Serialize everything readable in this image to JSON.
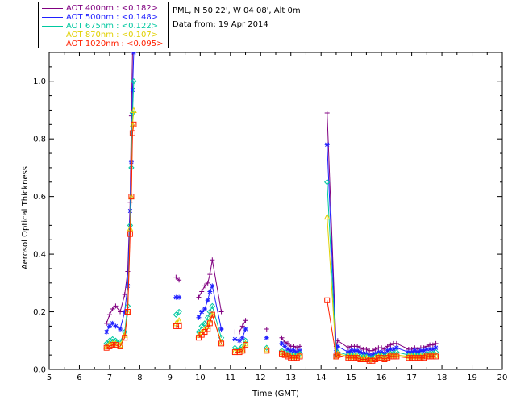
{
  "chart_data": {
    "type": "scatter",
    "title": "PML, N 50 22', W 04 08', Alt 0m",
    "subtitle": "Data from: 19 Apr 2014",
    "xlabel": "Time (GMT)",
    "ylabel": "Aerosol Optical Thickness",
    "xlim": [
      5,
      20
    ],
    "ylim": [
      0,
      1.1
    ],
    "xticks": [
      "5",
      "6",
      "7",
      "8",
      "9",
      "10",
      "11",
      "12",
      "13",
      "14",
      "15",
      "16",
      "17",
      "18",
      "19",
      "20"
    ],
    "yticks": [
      "0.0",
      "0.2",
      "0.4",
      "0.6",
      "0.8",
      "1.0"
    ],
    "x": [
      6.9,
      7.0,
      7.1,
      7.2,
      7.35,
      7.5,
      7.6,
      7.68,
      7.72,
      7.76,
      7.8,
      9.2,
      9.3,
      9.95,
      10.05,
      10.15,
      10.25,
      10.32,
      10.4,
      10.7,
      11.15,
      11.3,
      11.4,
      11.5,
      12.2,
      12.7,
      12.8,
      12.9,
      13.0,
      13.1,
      13.2,
      13.3,
      14.2,
      14.5,
      14.55,
      14.9,
      15.0,
      15.1,
      15.2,
      15.3,
      15.4,
      15.5,
      15.6,
      15.7,
      15.8,
      15.9,
      16.0,
      16.1,
      16.2,
      16.3,
      16.4,
      16.5,
      16.9,
      17.0,
      17.1,
      17.2,
      17.3,
      17.4,
      17.5,
      17.6,
      17.7,
      17.8
    ],
    "series": [
      {
        "name": "AOT  400nm : <0.182>",
        "color": "#800080",
        "marker": "plus",
        "connect_gap": 0.45,
        "values": [
          0.16,
          0.19,
          0.21,
          0.22,
          0.2,
          0.26,
          0.34,
          0.58,
          0.88,
          1.1,
          1.1,
          0.32,
          0.31,
          0.25,
          0.27,
          0.29,
          0.3,
          0.33,
          0.38,
          0.2,
          0.13,
          0.13,
          0.15,
          0.17,
          0.14,
          0.11,
          0.095,
          0.09,
          0.08,
          0.08,
          0.075,
          0.08,
          0.89,
          0.08,
          0.1,
          0.075,
          0.08,
          0.08,
          0.08,
          0.075,
          0.07,
          0.07,
          0.065,
          0.065,
          0.07,
          0.075,
          0.075,
          0.07,
          0.08,
          0.085,
          0.09,
          0.09,
          0.07,
          0.07,
          0.075,
          0.07,
          0.075,
          0.075,
          0.08,
          0.085,
          0.085,
          0.09
        ]
      },
      {
        "name": "AOT  500nm : <0.148>",
        "color": "#2020ff",
        "marker": "asterisk",
        "connect_gap": 0.45,
        "values": [
          0.13,
          0.15,
          0.16,
          0.15,
          0.14,
          0.2,
          0.29,
          0.55,
          0.72,
          0.97,
          1.1,
          0.25,
          0.25,
          0.18,
          0.2,
          0.21,
          0.24,
          0.27,
          0.29,
          0.14,
          0.105,
          0.1,
          0.11,
          0.14,
          0.11,
          0.09,
          0.08,
          0.07,
          0.065,
          0.065,
          0.06,
          0.065,
          0.78,
          0.065,
          0.08,
          0.06,
          0.065,
          0.065,
          0.065,
          0.06,
          0.055,
          0.055,
          0.05,
          0.05,
          0.055,
          0.06,
          0.06,
          0.055,
          0.065,
          0.07,
          0.07,
          0.075,
          0.06,
          0.06,
          0.065,
          0.06,
          0.065,
          0.065,
          0.07,
          0.07,
          0.07,
          0.075
        ]
      },
      {
        "name": "AOT  675nm : <0.122>",
        "color": "#00c8a0",
        "marker": "diamond",
        "connect_gap": 0.45,
        "values": [
          0.09,
          0.1,
          0.105,
          0.1,
          0.095,
          0.13,
          0.22,
          0.5,
          0.7,
          0.89,
          1.0,
          0.19,
          0.2,
          0.13,
          0.15,
          0.16,
          0.18,
          0.2,
          0.22,
          0.11,
          0.075,
          0.07,
          0.08,
          0.1,
          0.075,
          0.065,
          0.06,
          0.055,
          0.05,
          0.05,
          0.05,
          0.055,
          0.65,
          0.05,
          0.06,
          0.05,
          0.05,
          0.05,
          0.05,
          0.045,
          0.045,
          0.045,
          0.04,
          0.04,
          0.045,
          0.05,
          0.05,
          0.045,
          0.05,
          0.055,
          0.055,
          0.06,
          0.05,
          0.05,
          0.05,
          0.05,
          0.05,
          0.05,
          0.055,
          0.055,
          0.055,
          0.06
        ]
      },
      {
        "name": "AOT  870nm : <0.107>",
        "color": "#e0d000",
        "marker": "triangle",
        "connect_gap": 0.45,
        "values": [
          0.08,
          0.09,
          0.09,
          0.09,
          0.085,
          0.12,
          0.2,
          0.49,
          0.6,
          0.85,
          0.9,
          0.16,
          0.17,
          0.12,
          0.13,
          0.14,
          0.15,
          0.17,
          0.19,
          0.095,
          0.065,
          0.065,
          0.07,
          0.09,
          0.07,
          0.06,
          0.055,
          0.05,
          0.045,
          0.045,
          0.045,
          0.05,
          0.53,
          0.045,
          0.055,
          0.045,
          0.045,
          0.045,
          0.045,
          0.04,
          0.04,
          0.04,
          0.035,
          0.035,
          0.04,
          0.045,
          0.045,
          0.04,
          0.045,
          0.05,
          0.05,
          0.05,
          0.045,
          0.045,
          0.045,
          0.045,
          0.045,
          0.045,
          0.05,
          0.05,
          0.05,
          0.05
        ]
      },
      {
        "name": "AOT 1020nm : <0.095>",
        "color": "#ff2000",
        "marker": "square",
        "connect_gap": 0.45,
        "values": [
          0.075,
          0.08,
          0.085,
          0.085,
          0.08,
          0.11,
          0.2,
          0.47,
          0.6,
          0.82,
          0.85,
          0.15,
          0.15,
          0.11,
          0.12,
          0.13,
          0.14,
          0.16,
          0.19,
          0.09,
          0.06,
          0.06,
          0.065,
          0.085,
          0.065,
          0.055,
          0.05,
          0.045,
          0.04,
          0.04,
          0.04,
          0.045,
          0.24,
          0.045,
          0.05,
          0.04,
          0.04,
          0.04,
          0.04,
          0.035,
          0.035,
          0.035,
          0.03,
          0.03,
          0.035,
          0.04,
          0.04,
          0.035,
          0.04,
          0.045,
          0.045,
          0.045,
          0.04,
          0.04,
          0.04,
          0.04,
          0.04,
          0.04,
          0.045,
          0.045,
          0.045,
          0.045
        ]
      }
    ]
  }
}
